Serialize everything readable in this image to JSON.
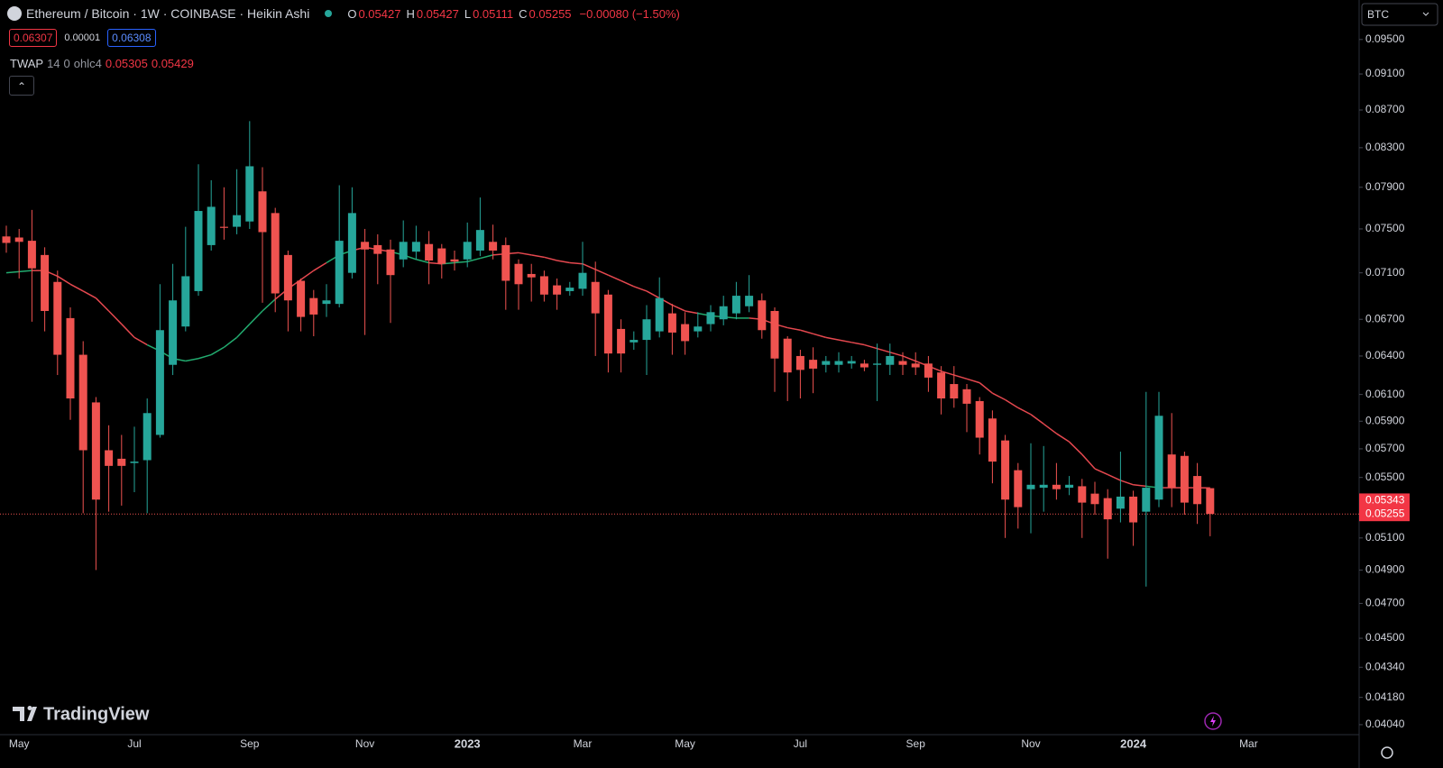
{
  "header": {
    "symbol": "Ethereum / Bitcoin · 1W · COINBASE · Heikin Ashi",
    "ohlc": [
      {
        "label": "O",
        "value": "0.05427"
      },
      {
        "label": "H",
        "value": "0.05427"
      },
      {
        "label": "L",
        "value": "0.05111"
      },
      {
        "label": "C",
        "value": "0.05255"
      }
    ],
    "change": "−0.00080 (−1.50%)",
    "bid": "0.06307",
    "spread": "0.00001",
    "ask": "0.06308",
    "currency": "BTC",
    "brand": "TradingView"
  },
  "chart_data": {
    "type": "candlestick",
    "log_scale": true,
    "grid": false,
    "up_color": "#26a69a",
    "down_color": "#ef5350",
    "categories": [
      null,
      "May",
      null,
      null,
      null,
      null,
      null,
      null,
      null,
      null,
      "Jul",
      null,
      null,
      null,
      null,
      null,
      null,
      null,
      null,
      "Sep",
      null,
      null,
      null,
      null,
      null,
      null,
      null,
      null,
      "Nov",
      null,
      null,
      null,
      null,
      null,
      null,
      null,
      "2023",
      null,
      null,
      null,
      null,
      null,
      null,
      null,
      null,
      "Mar",
      null,
      null,
      null,
      null,
      null,
      null,
      null,
      "May",
      null,
      null,
      null,
      null,
      null,
      null,
      null,
      null,
      "Jul",
      null,
      null,
      null,
      null,
      null,
      null,
      null,
      null,
      "Sep",
      null,
      null,
      null,
      null,
      null,
      null,
      null,
      null,
      "Nov",
      null,
      null,
      null,
      null,
      null,
      null,
      null,
      "2024",
      null,
      null,
      null,
      null,
      null,
      null,
      null,
      null,
      "Mar"
    ],
    "open": [
      0.0743,
      0.0742,
      0.0739,
      0.0726,
      0.0702,
      0.0671,
      0.0641,
      0.0604,
      0.0569,
      0.0563,
      0.056,
      0.0562,
      0.058,
      0.0633,
      0.0664,
      0.0694,
      0.0735,
      0.0752,
      0.0752,
      0.0757,
      0.0786,
      0.0765,
      0.0726,
      0.0703,
      0.0688,
      0.0683,
      0.0683,
      0.071,
      0.0738,
      0.0735,
      0.0731,
      0.0722,
      0.0729,
      0.0736,
      0.0732,
      0.0722,
      0.0722,
      0.073,
      0.0738,
      0.0735,
      0.0718,
      0.0709,
      0.0707,
      0.0699,
      0.0694,
      0.0696,
      0.0702,
      0.0691,
      0.0662,
      0.0651,
      0.0653,
      0.066,
      0.0675,
      0.0666,
      0.066,
      0.0666,
      0.067,
      0.0675,
      0.0681,
      0.0686,
      0.0677,
      0.0654,
      0.064,
      0.0637,
      0.0633,
      0.0633,
      0.0634,
      0.0634,
      0.0633,
      0.0633,
      0.0636,
      0.0634,
      0.0634,
      0.0627,
      0.0618,
      0.0614,
      0.0605,
      0.0592,
      0.0576,
      0.0555,
      0.0542,
      0.0543,
      0.0545,
      0.0543,
      0.0544,
      0.0539,
      0.0536,
      0.0529,
      0.0537,
      0.0527,
      0.0535,
      0.0566,
      0.0565,
      0.0551,
      0.05427,
      null,
      null,
      null
    ],
    "high": [
      0.0753,
      0.075,
      0.0768,
      0.0733,
      0.0712,
      0.068,
      0.0652,
      0.0608,
      0.0587,
      0.058,
      0.0586,
      0.0607,
      0.07,
      0.0718,
      0.0752,
      0.0813,
      0.0797,
      0.079,
      0.0808,
      0.0858,
      0.081,
      0.077,
      0.073,
      0.0705,
      0.0695,
      0.07,
      0.0792,
      0.079,
      0.075,
      0.0745,
      0.074,
      0.0758,
      0.0753,
      0.0748,
      0.0736,
      0.073,
      0.0756,
      0.078,
      0.0754,
      0.0742,
      0.0722,
      0.0718,
      0.0712,
      0.0705,
      0.0702,
      0.0738,
      0.072,
      0.0695,
      0.067,
      0.066,
      0.0682,
      0.0706,
      0.0683,
      0.0676,
      0.0676,
      0.0682,
      0.069,
      0.0702,
      0.0708,
      0.0692,
      0.068,
      0.0656,
      0.0645,
      0.0647,
      0.064,
      0.0643,
      0.064,
      0.0637,
      0.065,
      0.065,
      0.0643,
      0.0643,
      0.064,
      0.0632,
      0.0632,
      0.0618,
      0.0608,
      0.0598,
      0.058,
      0.056,
      0.0574,
      0.0572,
      0.056,
      0.0551,
      0.0549,
      0.0547,
      0.0542,
      0.0568,
      0.0541,
      0.0612,
      0.0612,
      0.0596,
      0.0568,
      0.056,
      0.05427,
      null,
      null,
      null
    ],
    "low": [
      0.0728,
      0.0705,
      0.0668,
      0.066,
      0.0625,
      0.0591,
      0.0526,
      0.049,
      0.0527,
      0.0531,
      0.054,
      0.0526,
      0.0578,
      0.0625,
      0.066,
      0.069,
      0.073,
      0.074,
      0.0745,
      0.075,
      0.0684,
      0.0676,
      0.066,
      0.066,
      0.0656,
      0.0672,
      0.068,
      0.0705,
      0.0657,
      0.07,
      0.0667,
      0.0715,
      0.0722,
      0.07,
      0.0705,
      0.0712,
      0.0715,
      0.0725,
      0.0722,
      0.0678,
      0.0678,
      0.0685,
      0.0685,
      0.0678,
      0.069,
      0.069,
      0.064,
      0.0627,
      0.0627,
      0.0645,
      0.0625,
      0.0655,
      0.0641,
      0.0641,
      0.0655,
      0.066,
      0.0665,
      0.067,
      0.0676,
      0.0654,
      0.0612,
      0.0605,
      0.0607,
      0.0611,
      0.0627,
      0.0627,
      0.063,
      0.0628,
      0.0605,
      0.0625,
      0.0625,
      0.0625,
      0.0612,
      0.0595,
      0.06,
      0.0582,
      0.0566,
      0.0546,
      0.051,
      0.0516,
      0.0513,
      0.0527,
      0.0535,
      0.0538,
      0.051,
      0.0525,
      0.0497,
      0.052,
      0.0505,
      0.048,
      0.053,
      0.053,
      0.0525,
      0.0519,
      0.05111,
      null,
      null,
      null
    ],
    "close": [
      0.0737,
      0.0738,
      0.0714,
      0.0677,
      0.0641,
      0.0607,
      0.0569,
      0.0535,
      0.0558,
      0.0558,
      0.0561,
      0.0596,
      0.0661,
      0.0686,
      0.0707,
      0.0767,
      0.0771,
      0.0751,
      0.0763,
      0.0811,
      0.0747,
      0.0692,
      0.0686,
      0.0672,
      0.0674,
      0.0686,
      0.0739,
      0.0765,
      0.0731,
      0.0727,
      0.0708,
      0.0738,
      0.0738,
      0.0721,
      0.0718,
      0.072,
      0.0738,
      0.0749,
      0.073,
      0.0703,
      0.07,
      0.0706,
      0.0691,
      0.0691,
      0.0697,
      0.071,
      0.0675,
      0.0642,
      0.0642,
      0.0653,
      0.067,
      0.0688,
      0.0659,
      0.0652,
      0.0664,
      0.0676,
      0.0681,
      0.069,
      0.069,
      0.0661,
      0.0638,
      0.0627,
      0.0629,
      0.063,
      0.0636,
      0.0636,
      0.0636,
      0.0631,
      0.0634,
      0.064,
      0.0633,
      0.0631,
      0.0623,
      0.0607,
      0.0607,
      0.0603,
      0.0578,
      0.0561,
      0.0535,
      0.053,
      0.0545,
      0.0545,
      0.0542,
      0.0545,
      0.0533,
      0.0532,
      0.0522,
      0.0537,
      0.052,
      0.0543,
      0.0594,
      0.0543,
      0.0533,
      0.0532,
      0.05255,
      null,
      null,
      null
    ],
    "twap": {
      "name": "TWAP",
      "params": [
        "14",
        "0",
        "ohlc4"
      ],
      "legend_values": [
        "0.05305",
        "0.05429"
      ],
      "up_color": "#22ab6f",
      "down_color": "#e5484f",
      "values": [
        0.071,
        0.0711,
        0.0712,
        0.0712,
        0.0707,
        0.07,
        0.0694,
        0.0688,
        0.0677,
        0.0666,
        0.0655,
        0.0649,
        0.0644,
        0.0638,
        0.0636,
        0.0638,
        0.0641,
        0.0647,
        0.0655,
        0.0666,
        0.0677,
        0.0687,
        0.0696,
        0.0704,
        0.0712,
        0.0719,
        0.0726,
        0.073,
        0.0733,
        0.0731,
        0.0729,
        0.0726,
        0.0722,
        0.0719,
        0.0718,
        0.0719,
        0.072,
        0.0723,
        0.0726,
        0.0727,
        0.0728,
        0.0726,
        0.0724,
        0.0721,
        0.0719,
        0.0718,
        0.0713,
        0.0708,
        0.0703,
        0.0698,
        0.0694,
        0.0688,
        0.0682,
        0.0677,
        0.0675,
        0.0673,
        0.0672,
        0.0671,
        0.0671,
        0.067,
        0.0666,
        0.0663,
        0.0661,
        0.0658,
        0.0655,
        0.0653,
        0.0651,
        0.0649,
        0.0646,
        0.0643,
        0.064,
        0.0636,
        0.0632,
        0.0628,
        0.0625,
        0.0622,
        0.0619,
        0.0611,
        0.0606,
        0.06,
        0.0595,
        0.0588,
        0.0581,
        0.0575,
        0.0566,
        0.0556,
        0.0552,
        0.0548,
        0.0545,
        0.0544,
        0.0543,
        0.0543,
        0.0543,
        0.0543,
        0.05429,
        null,
        null,
        null
      ]
    },
    "ylim": [
      0.0399,
      0.0998
    ],
    "yticks": [
      {
        "value": 0.095,
        "label": "0.09500"
      },
      {
        "value": 0.091,
        "label": "0.09100"
      },
      {
        "value": 0.087,
        "label": "0.08700"
      },
      {
        "value": 0.083,
        "label": "0.08300"
      },
      {
        "value": 0.079,
        "label": "0.07900"
      },
      {
        "value": 0.075,
        "label": "0.07500"
      },
      {
        "value": 0.071,
        "label": "0.07100"
      },
      {
        "value": 0.067,
        "label": "0.06700"
      },
      {
        "value": 0.064,
        "label": "0.06400"
      },
      {
        "value": 0.061,
        "label": "0.06100"
      },
      {
        "value": 0.059,
        "label": "0.05900"
      },
      {
        "value": 0.057,
        "label": "0.05700"
      },
      {
        "value": 0.055,
        "label": "0.05500"
      },
      {
        "value": 0.051,
        "label": "0.05100"
      },
      {
        "value": 0.049,
        "label": "0.04900"
      },
      {
        "value": 0.047,
        "label": "0.04700"
      },
      {
        "value": 0.045,
        "label": "0.04500"
      },
      {
        "value": 0.0434,
        "label": "0.04340"
      },
      {
        "value": 0.0418,
        "label": "0.04180"
      },
      {
        "value": 0.0404,
        "label": "0.04040"
      }
    ],
    "price_labels": [
      0.05343,
      0.05255
    ],
    "last_price": 0.05255
  }
}
